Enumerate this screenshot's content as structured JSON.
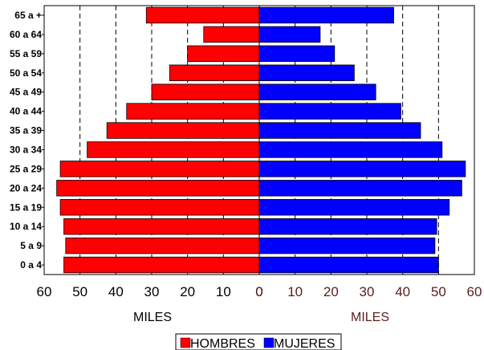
{
  "chart_data": {
    "type": "bar",
    "orientation": "horizontal",
    "subtype": "population-pyramid",
    "categories": [
      "65 a +",
      "60 a 64",
      "55 a 59",
      "50 a 54",
      "45 a 49",
      "40 a 44",
      "35 a 39",
      "30 a 34",
      "25 a 29",
      "20 a 24",
      "15 a 19",
      "10 a 14",
      "5 a 9",
      "0 a 4"
    ],
    "series": [
      {
        "name": "HOMBRES",
        "color": "#ff0000",
        "side": "left",
        "values": [
          31.5,
          15.5,
          20,
          25,
          30,
          37,
          42.5,
          48,
          55.5,
          56.5,
          55.5,
          54.5,
          54,
          54.5
        ]
      },
      {
        "name": "MUJERES",
        "color": "#0000ff",
        "side": "right",
        "values": [
          37.5,
          17,
          21,
          26.5,
          32.5,
          39.5,
          45,
          51,
          57.5,
          56.5,
          53,
          49.5,
          49,
          50
        ]
      }
    ],
    "x_ticks_left": [
      "60",
      "50",
      "40",
      "30",
      "20",
      "10",
      "0"
    ],
    "x_ticks_right": [
      "0",
      "10",
      "20",
      "30",
      "40",
      "50",
      "60"
    ],
    "xlim": [
      0,
      60
    ],
    "xlabel_left": "MILES",
    "xlabel_right": "MILES",
    "grid": "vertical dashed",
    "legend_position": "bottom-center"
  }
}
